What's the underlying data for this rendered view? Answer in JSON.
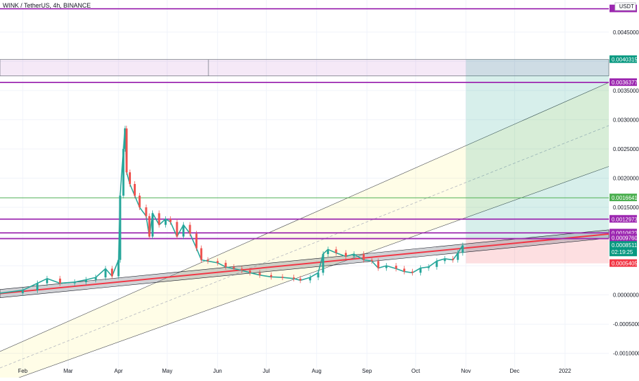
{
  "header": {
    "title": "WINK / TetherUS, 4h, BINANCE",
    "currency": "USDT"
  },
  "colors": {
    "background": "#ffffff",
    "grid": "#f0f3fa",
    "up": "#26a69a",
    "down": "#ef5350",
    "purple": "#9c27b0",
    "green": "#4caf50",
    "red": "#f23645",
    "teal": "#089981"
  },
  "chart_data": {
    "type": "candlestick",
    "symbol": "WINK / TetherUS",
    "interval": "4h",
    "exchange": "BINANCE",
    "x_axis": {
      "ticks": [
        "Feb",
        "Mar",
        "Apr",
        "May",
        "Jun",
        "Jul",
        "Aug",
        "Sep",
        "Oct",
        "Nov",
        "Dec",
        "2022"
      ]
    },
    "y_axis": {
      "ticks": [
        "0.0045000",
        "0.0035000",
        "0.0030000",
        "0.0025000",
        "0.0020000",
        "0.0015000",
        "0.0000000",
        "-0.0005000",
        "-0.0010000"
      ],
      "range": [
        -0.00125,
        0.00505
      ]
    },
    "series_path": [
      [
        "Jan 18",
        3e-05
      ],
      [
        "Feb 1",
        8e-05
      ],
      [
        "Feb 10",
        0.0002
      ],
      [
        "Feb 16",
        0.00028
      ],
      [
        "Feb 24",
        0.0002
      ],
      [
        "Mar 5",
        0.00022
      ],
      [
        "Mar 12",
        0.00026
      ],
      [
        "Mar 18",
        0.0003
      ],
      [
        "Mar 24",
        0.00045
      ],
      [
        "Mar 28",
        0.00032
      ],
      [
        "Apr 1",
        0.0006
      ],
      [
        "Apr 2",
        0.0017
      ],
      [
        "Apr 4",
        0.0025
      ],
      [
        "Apr 5",
        0.00285
      ],
      [
        "Apr 6",
        0.0021
      ],
      [
        "Apr 8",
        0.0019
      ],
      [
        "Apr 11",
        0.0017
      ],
      [
        "Apr 14",
        0.0015
      ],
      [
        "Apr 18",
        0.00135
      ],
      [
        "Apr 20",
        0.001
      ],
      [
        "Apr 22",
        0.0014
      ],
      [
        "Apr 26",
        0.0012
      ],
      [
        "Apr 30",
        0.0013
      ],
      [
        "May 3",
        0.00125
      ],
      [
        "May 7",
        0.001
      ],
      [
        "May 11",
        0.0012
      ],
      [
        "May 15",
        0.00105
      ],
      [
        "May 19",
        0.0008
      ],
      [
        "May 22",
        0.0006
      ],
      [
        "May 26",
        0.00058
      ],
      [
        "Jun 1",
        0.00055
      ],
      [
        "Jun 6",
        0.00048
      ],
      [
        "Jun 11",
        0.00045
      ],
      [
        "Jun 16",
        0.00042
      ],
      [
        "Jun 21",
        0.00038
      ],
      [
        "Jun 27",
        0.00034
      ],
      [
        "Jul 4",
        0.00031
      ],
      [
        "Jul 11",
        0.0003
      ],
      [
        "Jul 18",
        0.00028
      ],
      [
        "Jul 22",
        0.00025
      ],
      [
        "Jul 28",
        0.0003
      ],
      [
        "Aug 2",
        0.00038
      ],
      [
        "Aug 5",
        0.0007
      ],
      [
        "Aug 8",
        0.00078
      ],
      [
        "Aug 13",
        0.00072
      ],
      [
        "Aug 19",
        0.00066
      ],
      [
        "Aug 24",
        0.0007
      ],
      [
        "Aug 30",
        0.0006
      ],
      [
        "Sep 4",
        0.00058
      ],
      [
        "Sep 8",
        0.00046
      ],
      [
        "Sep 13",
        0.0005
      ],
      [
        "Sep 19",
        0.00045
      ],
      [
        "Sep 24",
        0.0004
      ],
      [
        "Sep 29",
        0.00038
      ],
      [
        "Oct 4",
        0.00046
      ],
      [
        "Oct 9",
        0.00048
      ],
      [
        "Oct 14",
        0.00058
      ],
      [
        "Oct 19",
        0.00062
      ],
      [
        "Oct 24",
        0.0006
      ],
      [
        "Oct 27",
        0.00072
      ],
      [
        "Oct 30",
        0.00085
      ]
    ],
    "horizontal_levels": [
      {
        "price": 0.0049,
        "label": "",
        "color": "#9c27b0"
      },
      {
        "price": 0.0040315,
        "label": "0.0040315",
        "color": "#089981"
      },
      {
        "price": 0.0036377,
        "label": "0.0036377",
        "color": "#9c27b0"
      },
      {
        "price": 0.0016641,
        "label": "0.0016641",
        "color": "#4caf50"
      },
      {
        "price": 0.0012973,
        "label": "0.0012973",
        "color": "#9c27b0"
      },
      {
        "price": 0.0010622,
        "label": "0.0010622",
        "color": "#9c27b0"
      },
      {
        "price": 0.0009648,
        "label": "0.0009648",
        "color": "#9c27b0"
      }
    ],
    "last_price": {
      "price": 0.0008511,
      "label": "0.0008511",
      "countdown": "02:19:25"
    },
    "position_tool": {
      "entry": 0.000976,
      "entry_label": "0.0009760",
      "target": 0.0040315,
      "stop": 0.0005405,
      "stop_label": "0.0005405",
      "start": "Nov 1",
      "end": "Jan 28"
    },
    "purple_range_box": {
      "top": 0.0040315,
      "bottom": 0.00375,
      "start": "Jan 18",
      "end": "Jan 28 2022"
    },
    "parallel_channel": {
      "upper_end": 0.0036377,
      "midline_end": 0.0029,
      "lower_end": 0.0022
    },
    "support_band": {
      "start": 0.0,
      "end": 0.00102
    }
  }
}
